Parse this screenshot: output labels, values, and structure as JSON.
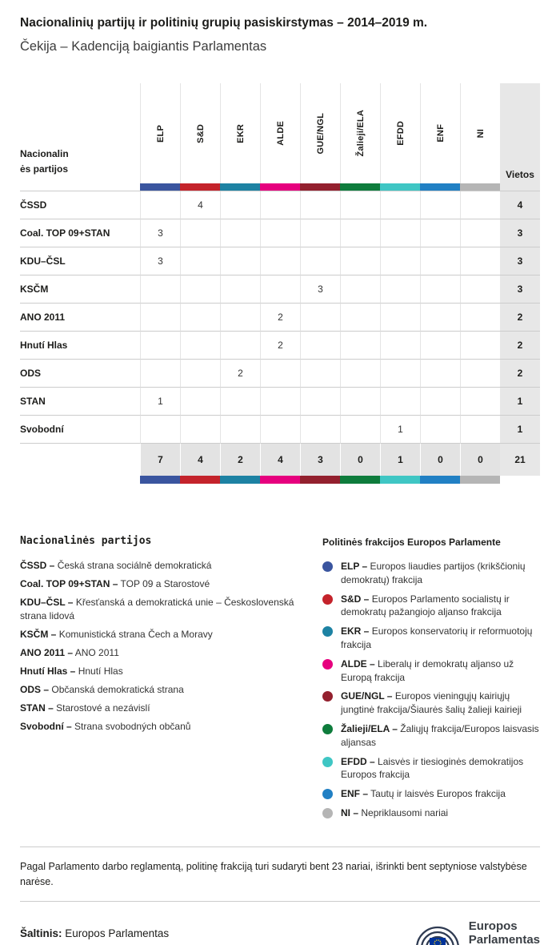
{
  "chart_data": {
    "type": "table",
    "title": "Nacionalinių partijų ir politinių grupių pasiskirstymas – 2014–2019 m.",
    "subtitle": "Čekija – Kadenciją baigiantis Parlamentas",
    "row_header": "Nacionalinės partijos",
    "seats_label": "Vietos",
    "groups": [
      {
        "id": "ELP",
        "color": "#3a559f"
      },
      {
        "id": "S&D",
        "color": "#c4232b"
      },
      {
        "id": "EKR",
        "color": "#1d82a3"
      },
      {
        "id": "ALDE",
        "color": "#e6007e"
      },
      {
        "id": "GUE/NGL",
        "color": "#93202e"
      },
      {
        "id": "Žalieji/ELA",
        "color": "#0e7c3c"
      },
      {
        "id": "EFDD",
        "color": "#3fc6c4"
      },
      {
        "id": "ENF",
        "color": "#2180c4"
      },
      {
        "id": "NI",
        "color": "#b5b5b5"
      }
    ],
    "rows": [
      {
        "party": "ČSSD",
        "values": [
          "",
          4,
          "",
          "",
          "",
          "",
          "",
          "",
          ""
        ],
        "seats": 4
      },
      {
        "party": "Coal. TOP 09+STAN",
        "values": [
          3,
          "",
          "",
          "",
          "",
          "",
          "",
          "",
          ""
        ],
        "seats": 3
      },
      {
        "party": "KDU–ČSL",
        "values": [
          3,
          "",
          "",
          "",
          "",
          "",
          "",
          "",
          ""
        ],
        "seats": 3
      },
      {
        "party": "KSČM",
        "values": [
          "",
          "",
          "",
          "",
          3,
          "",
          "",
          "",
          ""
        ],
        "seats": 3
      },
      {
        "party": "ANO 2011",
        "values": [
          "",
          "",
          "",
          2,
          "",
          "",
          "",
          "",
          ""
        ],
        "seats": 2
      },
      {
        "party": "Hnutí Hlas",
        "values": [
          "",
          "",
          "",
          2,
          "",
          "",
          "",
          "",
          ""
        ],
        "seats": 2
      },
      {
        "party": "ODS",
        "values": [
          "",
          "",
          2,
          "",
          "",
          "",
          "",
          "",
          ""
        ],
        "seats": 2
      },
      {
        "party": "STAN",
        "values": [
          1,
          "",
          "",
          "",
          "",
          "",
          "",
          "",
          ""
        ],
        "seats": 1
      },
      {
        "party": "Svobodní",
        "values": [
          "",
          "",
          "",
          "",
          "",
          "",
          1,
          "",
          ""
        ],
        "seats": 1
      }
    ],
    "totals": {
      "values": [
        7,
        4,
        2,
        4,
        3,
        0,
        1,
        0,
        0
      ],
      "seats": 21
    }
  },
  "legend_parties": {
    "title": "Nacionalinės partijos",
    "items": [
      {
        "abbr": "ČSSD –",
        "desc": "Česká strana sociálně demokratická"
      },
      {
        "abbr": "Coal. TOP 09+STAN –",
        "desc": "TOP 09 a Starostové"
      },
      {
        "abbr": "KDU–ČSL –",
        "desc": "Křesťanská a demokratická unie – Československá strana lidová"
      },
      {
        "abbr": "KSČM –",
        "desc": "Komunistická strana Čech a Moravy"
      },
      {
        "abbr": "ANO 2011 –",
        "desc": "ANO 2011"
      },
      {
        "abbr": "Hnutí Hlas –",
        "desc": "Hnutí Hlas"
      },
      {
        "abbr": "ODS –",
        "desc": "Občanská demokratická strana"
      },
      {
        "abbr": "STAN –",
        "desc": "Starostové a nezávislí"
      },
      {
        "abbr": "Svobodní –",
        "desc": "Strana svobodných občanů"
      }
    ]
  },
  "legend_groups": {
    "title": "Politinės frakcijos Europos Parlamente",
    "items": [
      {
        "abbr": "ELP –",
        "desc": "Europos liaudies partijos (krikščionių demokratų) frakcija"
      },
      {
        "abbr": "S&D –",
        "desc": "Europos Parlamento socialistų ir demokratų pažangiojo aljanso frakcija"
      },
      {
        "abbr": "EKR –",
        "desc": "Europos konservatorių ir reformuotojų frakcija"
      },
      {
        "abbr": "ALDE –",
        "desc": "Liberalų ir demokratų aljanso už Europą frakcija"
      },
      {
        "abbr": "GUE/NGL –",
        "desc": "Europos vieningųjų kairiųjų jungtinė frakcija/Šiaurės šalių žalieji kairieji"
      },
      {
        "abbr": "Žalieji/ELA –",
        "desc": "Žaliųjų frakcija/Europos laisvasis aljansas"
      },
      {
        "abbr": "EFDD –",
        "desc": "Laisvės ir tiesioginės demokratijos Europos frakcija"
      },
      {
        "abbr": "ENF –",
        "desc": "Tautų ir laisvės Europos frakcija"
      },
      {
        "abbr": "NI –",
        "desc": "Nepriklausomi nariai"
      }
    ]
  },
  "note": {
    "text": "Pagal Parlamento darbo reglamentą, politinę frakciją turi sudaryti bent 23 nariai, išrinkti bent septyniose valstybėse narėse."
  },
  "footer": {
    "source_label": "Šaltinis:",
    "source_value": "Europos Parlamentas",
    "logo_line1": "Europos",
    "logo_line2": "Parlamentas"
  }
}
